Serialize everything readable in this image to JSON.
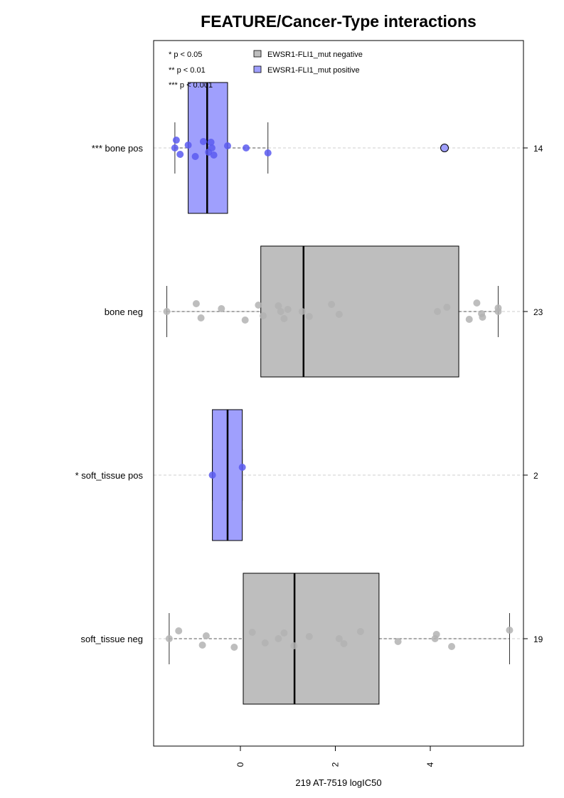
{
  "chart_data": {
    "type": "boxplot",
    "orientation": "horizontal",
    "title": "FEATURE/Cancer-Type interactions",
    "xlabel": "219 AT-7519 logIC50",
    "xlim": [
      -1.9,
      5.9
    ],
    "xticks": [
      0,
      2,
      4
    ],
    "grid": false,
    "colors": {
      "negative_fill": "#bebebe",
      "positive_fill": "#9f9ffd",
      "negative_point": "#b3b3b3",
      "positive_point": "#5a5af0",
      "outlier_fill": "#9f9ffd"
    },
    "significance_legend": [
      "* p < 0.05",
      "** p < 0.01",
      "*** p < 0.001"
    ],
    "legend": {
      "placement": "top-left",
      "entries": [
        {
          "label": "EWSR1-FLI1_mut negative",
          "color": "#bebebe"
        },
        {
          "label": "EWSR1-FLI1_mut positive",
          "color": "#9f9ffd"
        }
      ]
    },
    "groups": [
      {
        "label": "*** bone pos",
        "count": "14",
        "status": "positive",
        "q1": -1.1,
        "median": -0.7,
        "q3": -0.27,
        "whisker_low": -1.38,
        "whisker_high": 0.58,
        "points": [
          -1.38,
          -1.35,
          -1.27,
          -1.1,
          -0.95,
          -0.78,
          -0.67,
          -0.6,
          -0.62,
          -0.56,
          -0.27,
          0.12,
          0.58
        ],
        "outliers": [
          4.3
        ]
      },
      {
        "label": "bone neg",
        "count": "23",
        "status": "negative",
        "q1": 0.43,
        "median": 1.33,
        "q3": 4.6,
        "whisker_low": -1.55,
        "whisker_high": 5.43,
        "points": [
          -1.55,
          -0.93,
          -0.83,
          -0.4,
          0.1,
          0.38,
          0.48,
          0.85,
          0.8,
          0.92,
          1.0,
          1.3,
          1.45,
          1.92,
          2.08,
          4.15,
          4.35,
          4.82,
          4.98,
          5.08,
          5.1,
          5.43,
          5.43
        ],
        "outliers": []
      },
      {
        "label": "* soft_tissue pos",
        "count": "2",
        "status": "positive",
        "q1": -0.59,
        "median": -0.27,
        "q3": 0.04,
        "whisker_low": -0.59,
        "whisker_high": 0.04,
        "points": [
          -0.59,
          0.04
        ],
        "outliers": []
      },
      {
        "label": "soft_tissue neg",
        "count": "19",
        "status": "negative",
        "q1": 0.06,
        "median": 1.14,
        "q3": 2.92,
        "whisker_low": -1.5,
        "whisker_high": 5.67,
        "points": [
          -1.5,
          -1.3,
          -0.8,
          -0.72,
          -0.13,
          0.25,
          0.52,
          0.8,
          0.92,
          1.13,
          1.45,
          2.08,
          2.18,
          2.53,
          3.32,
          4.1,
          4.13,
          4.45,
          5.67
        ],
        "outliers": []
      }
    ]
  }
}
